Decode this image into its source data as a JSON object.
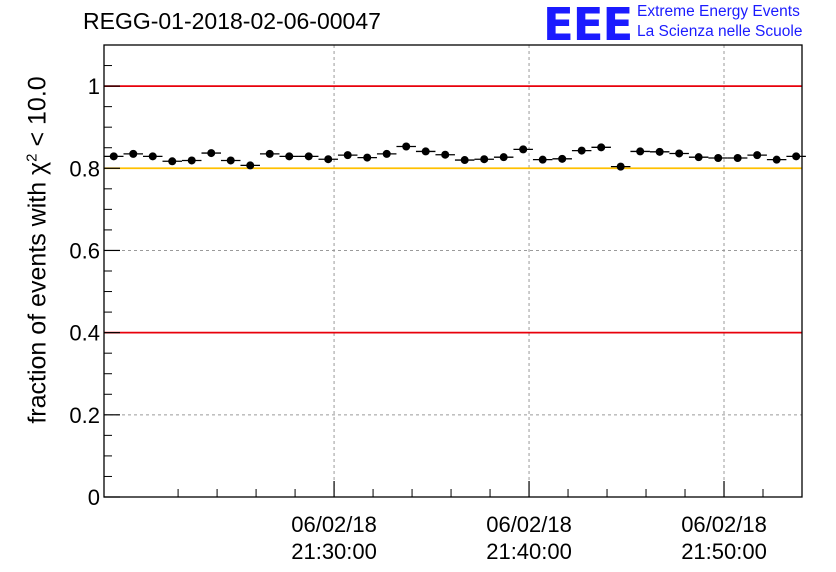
{
  "header": {
    "run_title": "REGG-01-2018-02-06-00047",
    "logo_letters": "EEE",
    "logo_line1": "Extreme Energy Events",
    "logo_line2": "La Scienza nelle Scuole"
  },
  "colors": {
    "reference_red": "#e8000b",
    "reference_yellow": "#ffc000",
    "marker": "#000000",
    "logo_blue": "#1b1bff"
  },
  "chart_data": {
    "type": "scatter",
    "title": "REGG-01-2018-02-06-00047",
    "xlabel": "",
    "ylabel_parts": [
      "fraction of events with ",
      "χ",
      "2",
      " < 10.0"
    ],
    "ylim": [
      0,
      1.1
    ],
    "yticks": [
      {
        "value": 0,
        "label": "0"
      },
      {
        "value": 0.2,
        "label": "0.2"
      },
      {
        "value": 0.4,
        "label": "0.4"
      },
      {
        "value": 0.6,
        "label": "0.6"
      },
      {
        "value": 0.8,
        "label": "0.8"
      },
      {
        "value": 1,
        "label": "1"
      }
    ],
    "xlim_minutes": [
      18.2,
      54.0
    ],
    "xticks": [
      {
        "minute": 30,
        "date": "06/02/18",
        "time": "21:30:00"
      },
      {
        "minute": 40,
        "date": "06/02/18",
        "time": "21:40:00"
      },
      {
        "minute": 50,
        "date": "06/02/18",
        "time": "21:50:00"
      }
    ],
    "grid": true,
    "bin_width_minutes": 1.0,
    "reference_lines": [
      {
        "value": 1.0,
        "color": "red"
      },
      {
        "value": 0.8,
        "color": "yellow"
      },
      {
        "value": 0.4,
        "color": "red"
      }
    ],
    "series": [
      {
        "x": [
          18.7,
          19.7,
          20.7,
          21.7,
          22.7,
          23.7,
          24.7,
          25.7,
          26.7,
          27.7,
          28.7,
          29.7,
          30.7,
          31.7,
          32.7,
          33.7,
          34.7,
          35.7,
          36.7,
          37.7,
          38.7,
          39.7,
          40.7,
          41.7,
          42.7,
          43.7,
          44.7,
          45.7,
          46.7,
          47.7,
          48.7,
          49.7,
          50.7,
          51.7,
          52.7,
          53.7
        ],
        "y": [
          0.829,
          0.835,
          0.829,
          0.817,
          0.819,
          0.837,
          0.819,
          0.807,
          0.835,
          0.829,
          0.829,
          0.822,
          0.832,
          0.826,
          0.835,
          0.853,
          0.841,
          0.833,
          0.82,
          0.822,
          0.827,
          0.846,
          0.821,
          0.823,
          0.843,
          0.851,
          0.804,
          0.841,
          0.84,
          0.836,
          0.827,
          0.825,
          0.825,
          0.832,
          0.821,
          0.829
        ]
      }
    ]
  }
}
